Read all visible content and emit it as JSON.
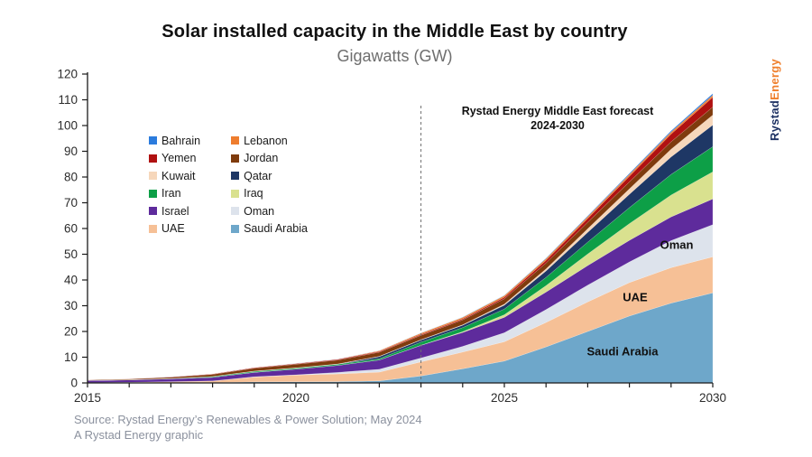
{
  "header": {
    "title": "Solar installed capacity in the Middle East by country",
    "subtitle": "Gigawatts (GW)"
  },
  "logo": {
    "part1": "Rystad",
    "part2": "Energy",
    "color1": "#1e3263",
    "color2": "#ef7f2c"
  },
  "annotation": {
    "line1": "Rystad Energy Middle East forecast",
    "line2": "2024-2030"
  },
  "footer": {
    "source": "Source: Rystad Energy’s Renewables & Power Solution; May 2024",
    "credit": "A Rystad Energy graphic"
  },
  "chart_data": {
    "type": "area",
    "stacked": true,
    "title": "Solar installed capacity in the Middle East by country",
    "ylabel": "Gigawatts (GW)",
    "xlabel": "",
    "ylim": [
      0,
      120
    ],
    "ytick_step": 10,
    "x": [
      2015,
      2016,
      2017,
      2018,
      2019,
      2020,
      2021,
      2022,
      2023,
      2024,
      2025,
      2026,
      2027,
      2028,
      2029,
      2030
    ],
    "xticks": [
      2015,
      2020,
      2025,
      2030
    ],
    "forecast_line_year": 2023,
    "grid": false,
    "legend_position": "upper-left-inside",
    "series": [
      {
        "name": "Saudi Arabia",
        "color": "#6ea7ca",
        "values": [
          0.03,
          0.05,
          0.08,
          0.15,
          0.4,
          0.45,
          0.5,
          0.8,
          2.7,
          5.5,
          8.5,
          14,
          20,
          26,
          31,
          35
        ]
      },
      {
        "name": "UAE",
        "color": "#f6c096",
        "values": [
          0.1,
          0.2,
          0.4,
          0.6,
          1.9,
          2.6,
          3.0,
          3.4,
          5.5,
          6.5,
          7.5,
          9.5,
          11.5,
          13,
          13.8,
          14
        ]
      },
      {
        "name": "Oman",
        "color": "#dde3ec",
        "values": [
          0,
          0,
          0.01,
          0.02,
          0.1,
          0.1,
          0.6,
          1.1,
          1.5,
          2.2,
          3.5,
          5,
          6.5,
          8,
          10.5,
          12.5
        ]
      },
      {
        "name": "Israel",
        "color": "#5e2b9c",
        "values": [
          0.8,
          0.9,
          1.1,
          1.4,
          1.7,
          2.2,
          2.7,
          3.6,
          4.9,
          5.4,
          6.0,
          6.8,
          7.6,
          8.4,
          9.2,
          10
        ]
      },
      {
        "name": "Iraq",
        "color": "#d9e18f",
        "values": [
          0,
          0,
          0,
          0,
          0.01,
          0.01,
          0.01,
          0.02,
          0.05,
          0.3,
          1.0,
          2.5,
          4.5,
          6.5,
          8.5,
          10.5
        ]
      },
      {
        "name": "Iran",
        "color": "#0d9f47",
        "values": [
          0.02,
          0.05,
          0.1,
          0.3,
          0.4,
          0.4,
          0.45,
          0.5,
          1.2,
          1.6,
          2.2,
          3.2,
          4.6,
          6.2,
          8.0,
          9.8
        ]
      },
      {
        "name": "Qatar",
        "color": "#1e3765",
        "values": [
          0,
          0,
          0,
          0,
          0,
          0,
          0,
          0.8,
          0.8,
          0.9,
          1.5,
          2.5,
          3.8,
          5.2,
          6.8,
          8.4
        ]
      },
      {
        "name": "Kuwait",
        "color": "#f6d7bb",
        "values": [
          0.01,
          0.01,
          0.02,
          0.05,
          0.1,
          0.1,
          0.1,
          0.12,
          0.15,
          0.2,
          0.4,
          0.8,
          1.4,
          2.1,
          3.0,
          3.9
        ]
      },
      {
        "name": "Jordan",
        "color": "#7f3b0d",
        "values": [
          0.2,
          0.3,
          0.5,
          0.8,
          1.1,
          1.4,
          1.5,
          1.6,
          1.7,
          1.9,
          2.1,
          2.3,
          2.5,
          2.7,
          2.9,
          3.1
        ]
      },
      {
        "name": "Yemen",
        "color": "#b01111",
        "values": [
          0.05,
          0.1,
          0.15,
          0.2,
          0.25,
          0.25,
          0.3,
          0.3,
          0.35,
          0.4,
          0.6,
          1.0,
          1.5,
          2.2,
          3.0,
          3.8
        ]
      },
      {
        "name": "Lebanon",
        "color": "#ee7d2e",
        "values": [
          0.01,
          0.02,
          0.03,
          0.04,
          0.05,
          0.08,
          0.1,
          0.3,
          0.5,
          0.55,
          0.6,
          0.65,
          0.7,
          0.72,
          0.75,
          0.8
        ]
      },
      {
        "name": "Bahrain",
        "color": "#2b7bdd",
        "values": [
          0,
          0,
          0.01,
          0.01,
          0.02,
          0.03,
          0.04,
          0.05,
          0.07,
          0.1,
          0.15,
          0.2,
          0.3,
          0.4,
          0.5,
          0.6
        ]
      }
    ],
    "legend": {
      "columns": [
        [
          "Bahrain",
          "Yemen",
          "Kuwait",
          "Iran",
          "Israel",
          "UAE"
        ],
        [
          "Lebanon",
          "Jordan",
          "Qatar",
          "Iraq",
          "Oman",
          "Saudi Arabia"
        ]
      ]
    },
    "area_labels": [
      {
        "text": "Oman",
        "x": 750,
        "y": 271
      },
      {
        "text": "UAE",
        "x": 704,
        "y": 329
      },
      {
        "text": "Saudi Arabia",
        "x": 690,
        "y": 389
      }
    ]
  }
}
